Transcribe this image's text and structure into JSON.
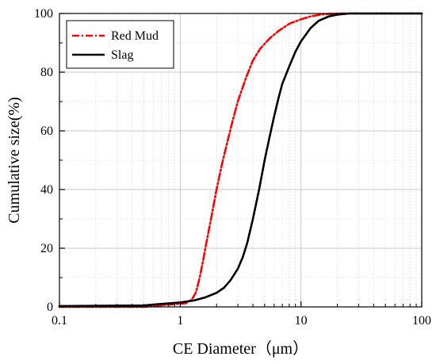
{
  "chart_data": {
    "type": "line",
    "xlabel": "CE Diameter（μm）",
    "ylabel": "Cumulative size(%)",
    "x_scale": "log",
    "xlim": [
      0.1,
      100
    ],
    "ylim": [
      0,
      100
    ],
    "x_ticks": [
      "0.1",
      "1",
      "10",
      "100"
    ],
    "y_ticks": [
      "0",
      "20",
      "40",
      "60",
      "80",
      "100"
    ],
    "grid": true,
    "legend_position": "top-left",
    "series": [
      {
        "name": "Red Mud",
        "color": "#ff0000",
        "style": "dash-dot",
        "points": [
          [
            0.1,
            0
          ],
          [
            0.5,
            0
          ],
          [
            0.8,
            0.8
          ],
          [
            1.1,
            1.2
          ],
          [
            1.25,
            2.5
          ],
          [
            1.35,
            5
          ],
          [
            1.45,
            10
          ],
          [
            1.55,
            16
          ],
          [
            1.65,
            22
          ],
          [
            1.8,
            30
          ],
          [
            2.0,
            40
          ],
          [
            2.2,
            48
          ],
          [
            2.45,
            56
          ],
          [
            2.7,
            63
          ],
          [
            3.0,
            70
          ],
          [
            3.5,
            78
          ],
          [
            4.0,
            84
          ],
          [
            4.6,
            88
          ],
          [
            5.5,
            91.5
          ],
          [
            6.5,
            94
          ],
          [
            8.0,
            96.5
          ],
          [
            10,
            98
          ],
          [
            12,
            99
          ],
          [
            15,
            99.7
          ],
          [
            20,
            100
          ],
          [
            100,
            100
          ]
        ]
      },
      {
        "name": "Slag",
        "color": "#000000",
        "style": "solid",
        "points": [
          [
            0.1,
            0.3
          ],
          [
            0.5,
            0.5
          ],
          [
            0.6,
            0.8
          ],
          [
            0.8,
            1.2
          ],
          [
            1.0,
            1.5
          ],
          [
            1.3,
            2.2
          ],
          [
            1.6,
            3.2
          ],
          [
            2.0,
            4.8
          ],
          [
            2.3,
            6.5
          ],
          [
            2.6,
            9
          ],
          [
            3.0,
            13
          ],
          [
            3.3,
            17
          ],
          [
            3.6,
            22
          ],
          [
            4.0,
            30
          ],
          [
            4.5,
            40
          ],
          [
            5.0,
            50
          ],
          [
            5.5,
            58
          ],
          [
            6.0,
            65
          ],
          [
            6.5,
            71
          ],
          [
            7.0,
            76
          ],
          [
            8.0,
            82
          ],
          [
            9.0,
            87
          ],
          [
            10,
            90.5
          ],
          [
            12,
            95
          ],
          [
            14,
            97.5
          ],
          [
            17,
            99
          ],
          [
            20,
            99.6
          ],
          [
            25,
            100
          ],
          [
            100,
            100
          ]
        ]
      }
    ]
  }
}
